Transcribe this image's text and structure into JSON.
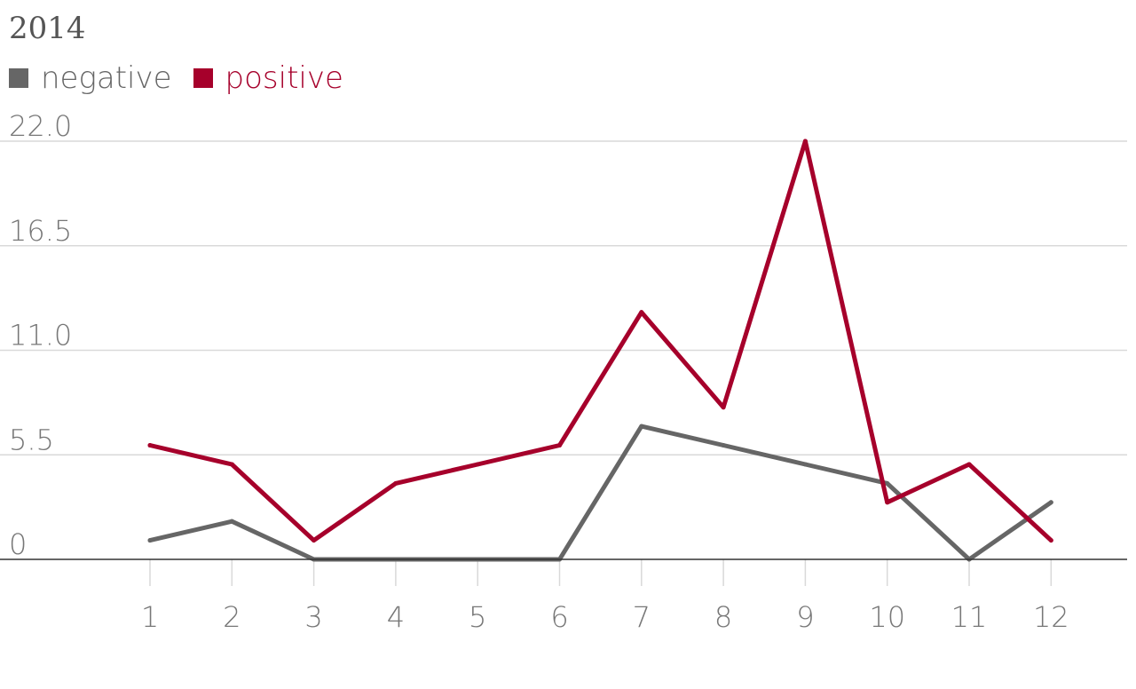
{
  "chart_data": {
    "type": "line",
    "title": "2014",
    "xlabel": "",
    "ylabel": "",
    "categories": [
      "1",
      "2",
      "3",
      "4",
      "5",
      "6",
      "7",
      "8",
      "9",
      "10",
      "11",
      "12"
    ],
    "yticks": [
      "0",
      "5.5",
      "11.0",
      "16.5",
      "22.0"
    ],
    "ylim": [
      0,
      22
    ],
    "grid": true,
    "legend_position": "top-left",
    "series": [
      {
        "name": "negative",
        "color": "#666666",
        "values": [
          1,
          2,
          0,
          0,
          0,
          0,
          7,
          6,
          5,
          4,
          0,
          3
        ]
      },
      {
        "name": "positive",
        "color": "#a6002b",
        "values": [
          6,
          5,
          1,
          4,
          5,
          6,
          13,
          8,
          22,
          3,
          5,
          1
        ]
      }
    ]
  }
}
